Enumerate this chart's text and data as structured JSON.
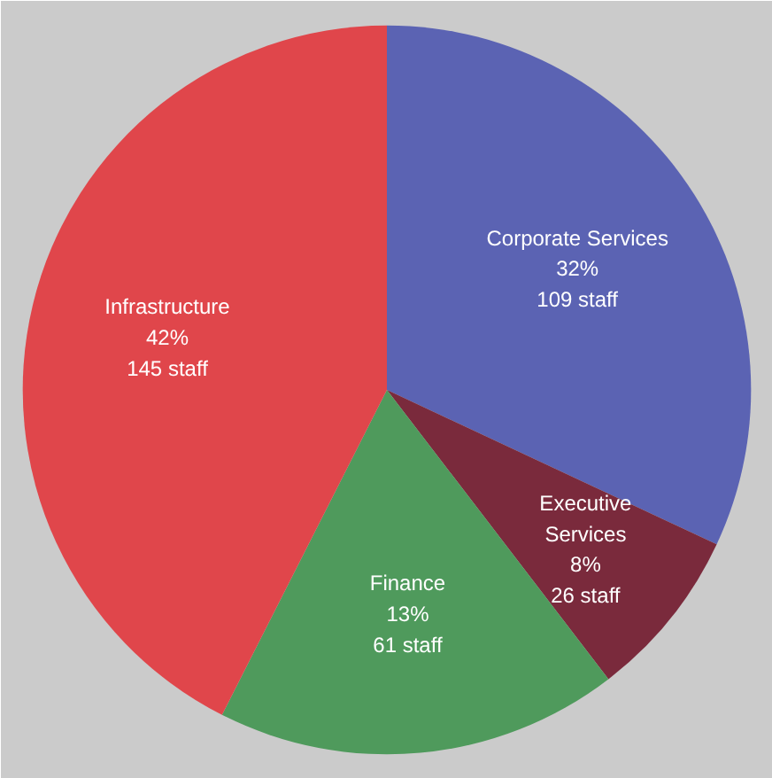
{
  "chart_data": {
    "type": "pie",
    "categories": [
      "Corporate Services",
      "Executive\nServices",
      "Finance",
      "Infrastructure"
    ],
    "values": [
      109,
      26,
      61,
      145
    ],
    "colors": [
      "#5b63b3",
      "#7a2a3c",
      "#4f9a5c",
      "#e0464b"
    ],
    "value_labels": [
      "32%\n109 staff",
      "8%\n26 staff",
      "13%\n61 staff",
      "42%\n145 staff"
    ]
  }
}
